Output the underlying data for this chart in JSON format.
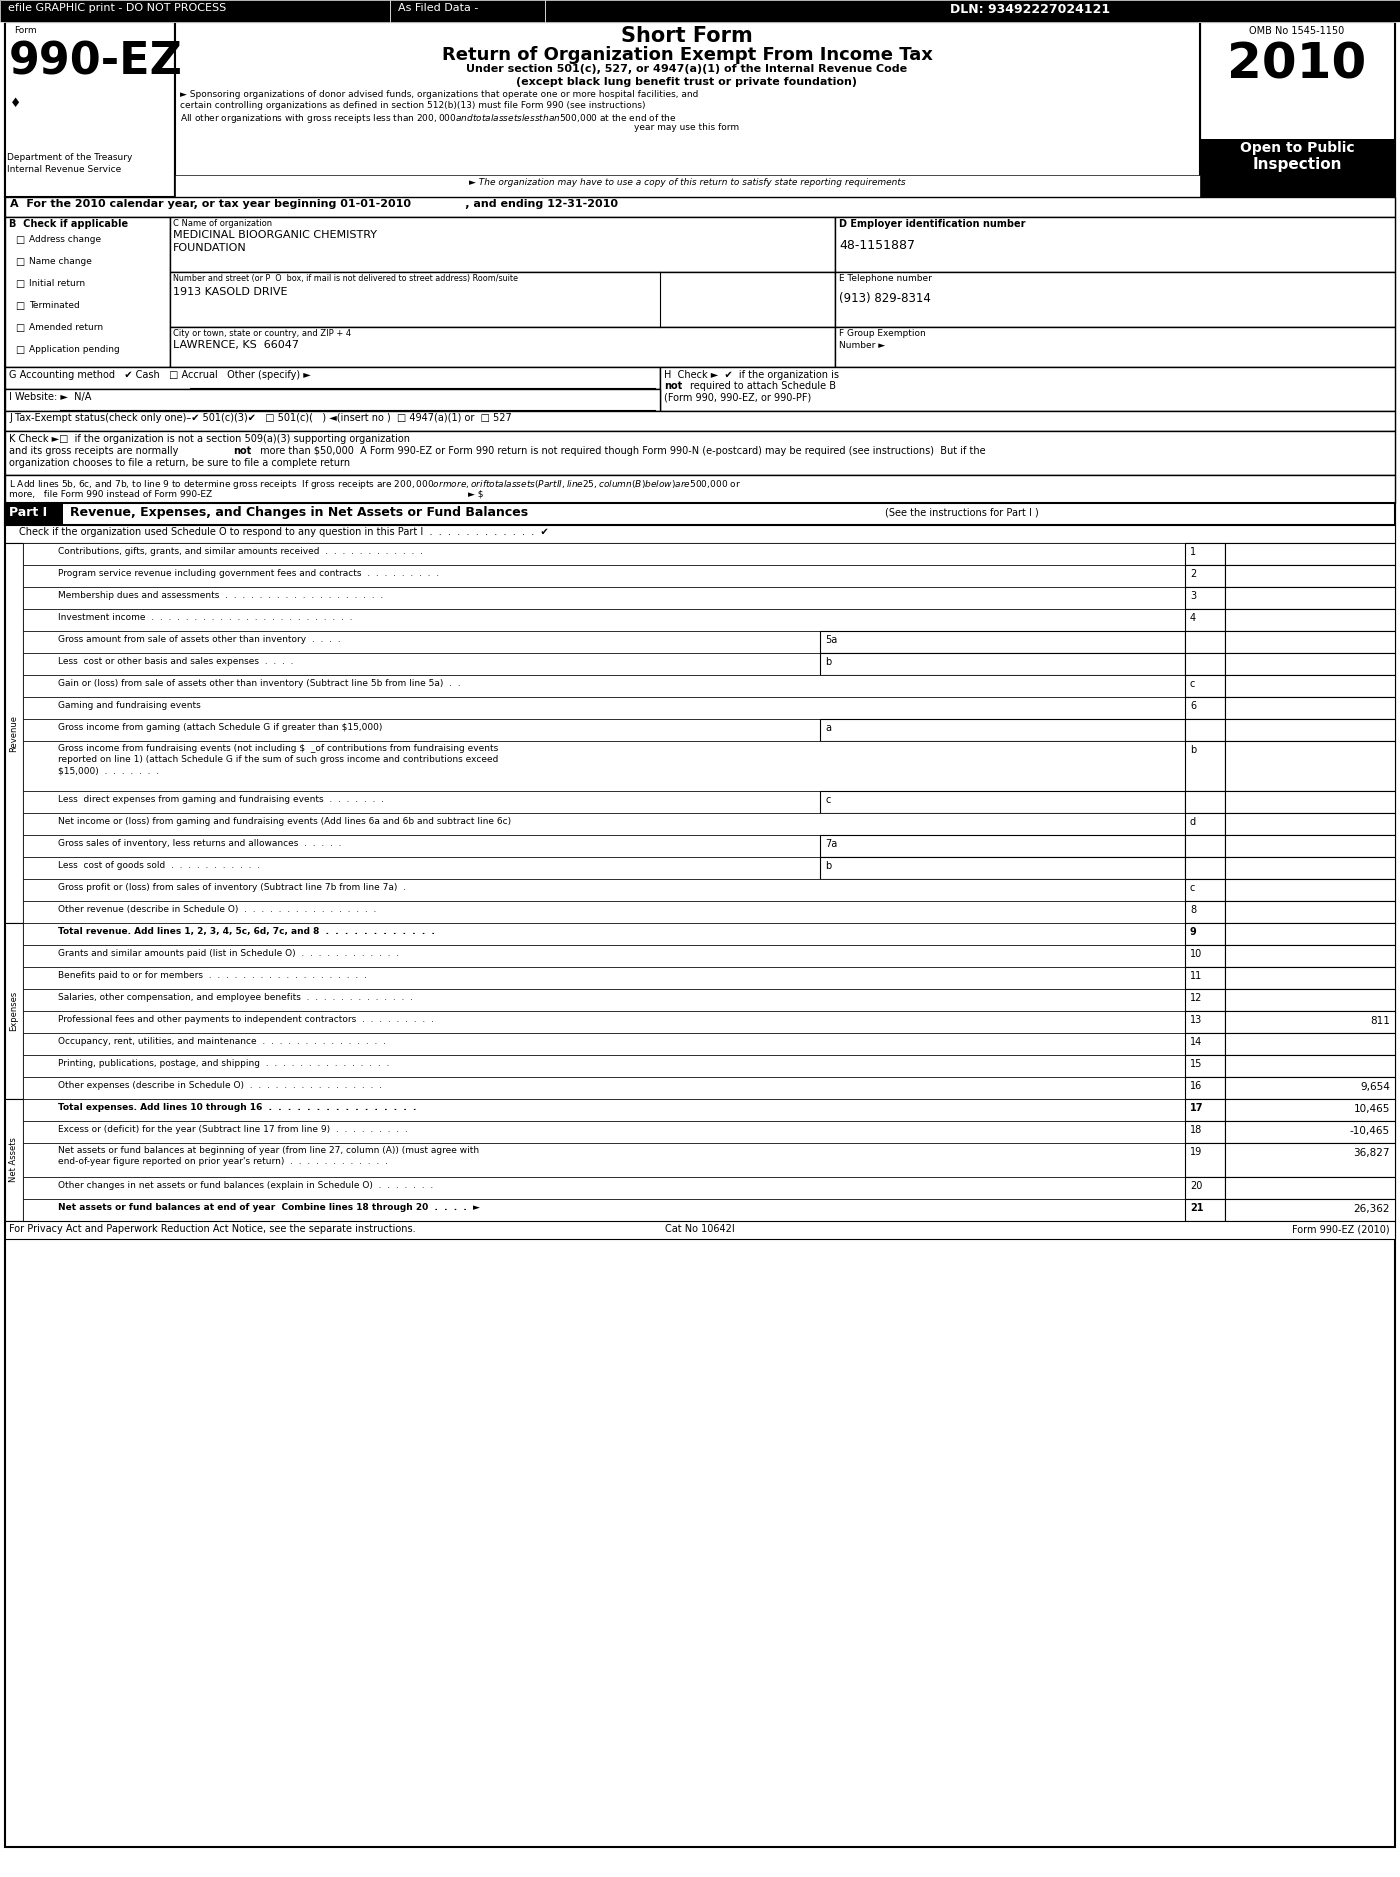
{
  "page_bg": "#ffffff",
  "banner_text1": "efile GRAPHIC print - DO NOT PROCESS",
  "banner_sep1": "As Filed Data -",
  "banner_dln": "DLN: 93492227024121",
  "form_number": "990-EZ",
  "short_form": "Short Form",
  "main_title": "Return of Organization Exempt From Income Tax",
  "subtitle1": "Under section 501(c), 527, or 4947(a)(1) of the Internal Revenue Code",
  "subtitle2": "(except black lung benefit trust or private foundation)",
  "bullet1": "► Sponsoring organizations of donor advised funds, organizations that operate one or more hospital facilities, and",
  "bullet1b": "certain controlling organizations as defined in section 512(b)(13) must file Form 990 (see instructions)",
  "bullet2": "All other organizations with gross receipts less than $200,000 and total assets less than $500,000 at the end of the",
  "bullet2b": "year may use this form",
  "italic_line": "► The organization may have to use a copy of this return to satisfy state reporting requirements",
  "omb": "OMB No 1545-1150",
  "year": "2010",
  "open_public": "Open to Public",
  "inspection": "Inspection",
  "dept": "Department of the Treasury",
  "irs": "Internal Revenue Service",
  "sec_a": "A  For the 2010 calendar year, or tax year beginning 01-01-2010",
  "sec_a2": ", and ending 12-31-2010",
  "check_b": "B  Check if applicable",
  "b_fields": [
    "Address change",
    "Name change",
    "Initial return",
    "Terminated",
    "Amended return",
    "Application pending"
  ],
  "c_label": "C Name of organization",
  "org1": "MEDICINAL BIOORGANIC CHEMISTRY",
  "org2": "FOUNDATION",
  "street_label": "Number and street (or P  O  box, if mail is not delivered to street address) Room/suite",
  "street": "1913 KASOLD DRIVE",
  "city_label": "City or town, state or country, and ZIP + 4",
  "city": "LAWRENCE, KS  66047",
  "d_label": "D Employer identification number",
  "ein": "48-1151887",
  "e_label": "E Telephone number",
  "phone": "(913) 829-8314",
  "f_label": "F Group Exemption",
  "f_num": "Number ►",
  "g_line": "G Accounting method   ✔ Cash   □ Accrual   Other (specify) ►",
  "i_line": "I Website: ►  N/A",
  "h_line1": "H  Check ►  ✔  if the organization is",
  "h_not": "not",
  "h_line2": "required to attach Schedule B",
  "h_line3": "(Form 990, 990-EZ, or 990-PF)",
  "j_line": "J Tax-Exempt status(check only one)–✔ 501(c)(3)✔   □ 501(c)(   ) ◄(insert no )  □ 4947(a)(1) or  □ 527",
  "k1": "K Check ►□  if the organization is not a section 509(a)(3) supporting organization",
  "k1b": "and its gross receipts are normally",
  "k1c": "not",
  "k1d": "more than",
  "k2": "$50,000  A Form 990-EZ or Form 990 return is not required though Form 990-N (e-postcard) may be required (see instructions)  But if the",
  "k3": "organization chooses to file a return, be sure to file a complete return",
  "l1": "L Add lines 5b, 6c, and 7b, to line 9 to determine gross receipts  If gross receipts are $200,000 or more, or if total assets (Part II, line 25, column (B) below) are $500,000 or",
  "l2": "more,   file Form 990 instead of Form 990-EZ",
  "l_arrow": "► $",
  "part1_label": "Part I",
  "part1_title": "Revenue, Expenses, and Changes in Net Assets or Fund Balances",
  "part1_see": "(See the instructions for Part I )",
  "part1_check": "Check if the organization used Schedule O to respond to any question in this Part I",
  "part1_dots": "  .  .  .  .  .  .  .  .  .  .  .  .  ✔",
  "table_rows": [
    {
      "num": "1",
      "txt": "Contributions, gifts, grants, and similar amounts received  .  .  .  .  .  .  .  .  .  .  .  .",
      "val": "",
      "sub": false,
      "bold": false,
      "extra": 0,
      "subbox": false
    },
    {
      "num": "2",
      "txt": "Program service revenue including government fees and contracts  .  .  .  .  .  .  .  .  .",
      "val": "",
      "sub": false,
      "bold": false,
      "extra": 0,
      "subbox": false
    },
    {
      "num": "3",
      "txt": "Membership dues and assessments  .  .  .  .  .  .  .  .  .  .  .  .  .  .  .  .  .  .  .",
      "val": "",
      "sub": false,
      "bold": false,
      "extra": 0,
      "subbox": false
    },
    {
      "num": "4",
      "txt": "Investment income  .  .  .  .  .  .  .  .  .  .  .  .  .  .  .  .  .  .  .  .  .  .  .  .",
      "val": "",
      "sub": false,
      "bold": false,
      "extra": 0,
      "subbox": false
    },
    {
      "num": "5a",
      "txt": "Gross amount from sale of assets other than inventory  .  .  .  .",
      "val": "",
      "sub": false,
      "bold": false,
      "extra": 0,
      "subbox": true
    },
    {
      "num": "b",
      "txt": "Less  cost or other basis and sales expenses  .  .  .  .",
      "val": "",
      "sub": false,
      "bold": false,
      "extra": 0,
      "subbox": true
    },
    {
      "num": "c",
      "txt": "Gain or (loss) from sale of assets other than inventory (Subtract line 5b from line 5a)  .  .",
      "val": "",
      "sub": false,
      "bold": false,
      "extra": 0,
      "subbox": false
    },
    {
      "num": "6",
      "txt": "Gaming and fundraising events",
      "val": "",
      "sub": false,
      "bold": false,
      "extra": 0,
      "subbox": false
    },
    {
      "num": "a",
      "txt": "Gross income from gaming (attach Schedule G if greater than $15,000)",
      "val": "",
      "sub": false,
      "bold": false,
      "extra": 0,
      "subbox": true
    },
    {
      "num": "b",
      "txt": "Gross income from fundraising events (not including $  _of contributions from fundraising events\nreported on line 1) (attach Schedule G if the sum of such gross income and contributions exceed\n$15,000)  .  .  .  .  .  .  .",
      "val": "",
      "sub": false,
      "bold": false,
      "extra": 28,
      "subbox": false
    },
    {
      "num": "c",
      "txt": "Less  direct expenses from gaming and fundraising events  .  .  .  .  .  .  .",
      "val": "",
      "sub": false,
      "bold": false,
      "extra": 0,
      "subbox": true
    },
    {
      "num": "d",
      "txt": "Net income or (loss) from gaming and fundraising events (Add lines 6a and 6b and subtract line 6c)",
      "val": "",
      "sub": false,
      "bold": false,
      "extra": 0,
      "subbox": false
    },
    {
      "num": "7a",
      "txt": "Gross sales of inventory, less returns and allowances  .  .  .  .  .",
      "val": "",
      "sub": false,
      "bold": false,
      "extra": 0,
      "subbox": true
    },
    {
      "num": "b",
      "txt": "Less  cost of goods sold  .  .  .  .  .  .  .  .  .  .  .",
      "val": "",
      "sub": false,
      "bold": false,
      "extra": 0,
      "subbox": true
    },
    {
      "num": "c",
      "txt": "Gross profit or (loss) from sales of inventory (Subtract line 7b from line 7a)  .",
      "val": "",
      "sub": false,
      "bold": false,
      "extra": 0,
      "subbox": false
    },
    {
      "num": "8",
      "txt": "Other revenue (describe in Schedule O)  .  .  .  .  .  .  .  .  .  .  .  .  .  .  .  .",
      "val": "",
      "sub": false,
      "bold": false,
      "extra": 0,
      "subbox": false
    },
    {
      "num": "9",
      "txt": "Total revenue. Add lines 1, 2, 3, 4, 5c, 6d, 7c, and 8  .  .  .  .  .  .  .  .  .  .  .  .",
      "val": "",
      "sub": false,
      "bold": true,
      "extra": 0,
      "subbox": false
    },
    {
      "num": "10",
      "txt": "Grants and similar amounts paid (list in Schedule O)  .  .  .  .  .  .  .  .  .  .  .  .",
      "val": "",
      "sub": false,
      "bold": false,
      "extra": 0,
      "subbox": false
    },
    {
      "num": "11",
      "txt": "Benefits paid to or for members  .  .  .  .  .  .  .  .  .  .  .  .  .  .  .  .  .  .  .",
      "val": "",
      "sub": false,
      "bold": false,
      "extra": 0,
      "subbox": false
    },
    {
      "num": "12",
      "txt": "Salaries, other compensation, and employee benefits  .  .  .  .  .  .  .  .  .  .  .  .  .",
      "val": "",
      "sub": false,
      "bold": false,
      "extra": 0,
      "subbox": false
    },
    {
      "num": "13",
      "txt": "Professional fees and other payments to independent contractors  .  .  .  .  .  .  .  .  .",
      "val": "811",
      "sub": false,
      "bold": false,
      "extra": 0,
      "subbox": false
    },
    {
      "num": "14",
      "txt": "Occupancy, rent, utilities, and maintenance  .  .  .  .  .  .  .  .  .  .  .  .  .  .  .",
      "val": "",
      "sub": false,
      "bold": false,
      "extra": 0,
      "subbox": false
    },
    {
      "num": "15",
      "txt": "Printing, publications, postage, and shipping  .  .  .  .  .  .  .  .  .  .  .  .  .  .  .",
      "val": "",
      "sub": false,
      "bold": false,
      "extra": 0,
      "subbox": false
    },
    {
      "num": "16",
      "txt": "Other expenses (describe in Schedule O)  .  .  .  .  .  .  .  .  .  .  .  .  .  .  .  .",
      "val": "9,654",
      "sub": false,
      "bold": false,
      "extra": 0,
      "subbox": false
    },
    {
      "num": "17",
      "txt": "Total expenses. Add lines 10 through 16  .  .  .  .  .  .  .  .  .  .  .  .  .  .  .  .",
      "val": "10,465",
      "sub": false,
      "bold": true,
      "extra": 0,
      "subbox": false
    },
    {
      "num": "18",
      "txt": "Excess or (deficit) for the year (Subtract line 17 from line 9)  .  .  .  .  .  .  .  .  .",
      "val": "-10,465",
      "sub": false,
      "bold": false,
      "extra": 0,
      "subbox": false
    },
    {
      "num": "19",
      "txt": "Net assets or fund balances at beginning of year (from line 27, column (A)) (must agree with\nend-of-year figure reported on prior year's return)  .  .  .  .  .  .  .  .  .  .  .  .",
      "val": "36,827",
      "sub": false,
      "bold": false,
      "extra": 12,
      "subbox": false
    },
    {
      "num": "20",
      "txt": "Other changes in net assets or fund balances (explain in Schedule O)  .  .  .  .  .  .  .",
      "val": "",
      "sub": false,
      "bold": false,
      "extra": 0,
      "subbox": false
    },
    {
      "num": "21",
      "txt": "Net assets or fund balances at end of year  Combine lines 18 through 20  .  .  .  .  ►",
      "val": "26,362",
      "sub": false,
      "bold": true,
      "extra": 0,
      "subbox": false
    }
  ],
  "rev_label": "Revenue",
  "exp_label": "Expenses",
  "na_label": "Net Assets",
  "footer1": "For Privacy Act and Paperwork Reduction Act Notice, see the separate instructions.",
  "footer2": "Cat No 10642I",
  "footer3": "Form 990-EZ (2010)"
}
